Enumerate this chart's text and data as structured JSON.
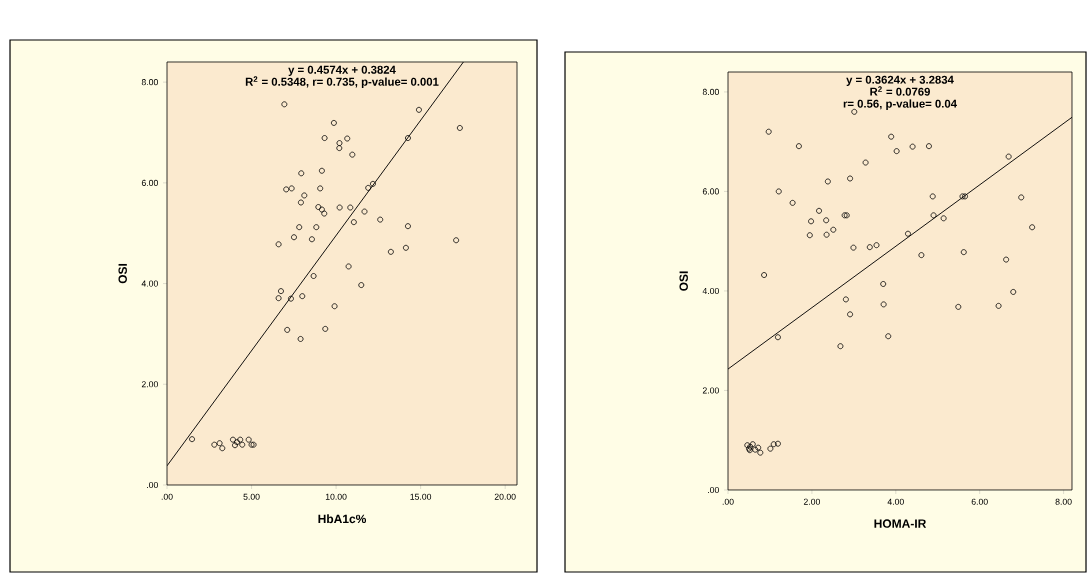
{
  "chart_data": [
    {
      "type": "scatter",
      "xlabel": "HbA1c%",
      "ylabel": "OSI",
      "xlim": [
        0,
        20.7
      ],
      "ylim": [
        0,
        8.4
      ],
      "xticks": [
        {
          "value": 0,
          "label": ".00"
        },
        {
          "value": 5,
          "label": "5.00"
        },
        {
          "value": 10,
          "label": "10.00"
        },
        {
          "value": 15,
          "label": "15.00"
        },
        {
          "value": 20,
          "label": "20.00"
        }
      ],
      "yticks": [
        {
          "value": 0,
          "label": ".00"
        },
        {
          "value": 2,
          "label": "2.00"
        },
        {
          "value": 4,
          "label": "4.00"
        },
        {
          "value": 6,
          "label": "6.00"
        },
        {
          "value": 8,
          "label": "8.00"
        }
      ],
      "annotations": [
        "y = 0.4574x + 0.3824",
        "R$^{2}$ = 0.5348, r= 0.735, p-value= 0.001"
      ],
      "series": [
        {
          "marker": "circle",
          "color": "#000000",
          "x": [
            6.94,
            9.87,
            9.32,
            10.2,
            10.19,
            10.66,
            10.96,
            14.9,
            14.25,
            17.32,
            7.94,
            9.16,
            7.05,
            7.37,
            8.12,
            7.92,
            9.06,
            8.95,
            9.16,
            9.3,
            10.21,
            10.84,
            11.9,
            12.18,
            11.68,
            11.05,
            12.61,
            14.25,
            7.82,
            8.83,
            7.51,
            8.57,
            6.6,
            13.24,
            14.13,
            17.1,
            10.74,
            8.67,
            11.49,
            6.74,
            6.6,
            7.33,
            8.0,
            9.91,
            7.11,
            9.36,
            7.9,
            1.48,
            2.8,
            3.11,
            3.27,
            3.9,
            4.02,
            4.14,
            4.33,
            4.45,
            4.83,
            5.0,
            5.12
          ],
          "values": [
            7.56,
            7.19,
            6.89,
            6.79,
            6.69,
            6.88,
            6.56,
            7.45,
            6.89,
            7.09,
            6.19,
            6.24,
            5.87,
            5.89,
            5.75,
            5.61,
            5.89,
            5.52,
            5.47,
            5.39,
            5.51,
            5.51,
            5.9,
            5.98,
            5.43,
            5.22,
            5.27,
            5.14,
            5.12,
            5.12,
            4.92,
            4.88,
            4.78,
            4.63,
            4.71,
            4.86,
            4.34,
            4.15,
            3.97,
            3.85,
            3.71,
            3.7,
            3.75,
            3.55,
            3.08,
            3.1,
            2.9,
            0.91,
            0.8,
            0.83,
            0.73,
            0.9,
            0.79,
            0.85,
            0.9,
            0.8,
            0.9,
            0.8,
            0.8
          ]
        },
        {
          "type": "line",
          "color": "#000000",
          "x": [
            0,
            17.53
          ],
          "values": [
            0.38,
            8.4
          ]
        }
      ]
    },
    {
      "type": "scatter",
      "xlabel": "HOMA-IR",
      "ylabel": "OSI",
      "xlim": [
        0,
        8.2
      ],
      "ylim": [
        0,
        8.4
      ],
      "xticks": [
        {
          "value": 0,
          "label": ".00"
        },
        {
          "value": 2,
          "label": "2.00"
        },
        {
          "value": 4,
          "label": "4.00"
        },
        {
          "value": 6,
          "label": "6.00"
        },
        {
          "value": 8,
          "label": "8.00"
        }
      ],
      "yticks": [
        {
          "value": 0,
          "label": ".00"
        },
        {
          "value": 2,
          "label": "2.00"
        },
        {
          "value": 4,
          "label": "4.00"
        },
        {
          "value": 6,
          "label": "6.00"
        },
        {
          "value": 8,
          "label": "8.00"
        }
      ],
      "annotations": [
        "y = 0.3624x + 3.2834",
        "R$^{2}$ = 0.0769",
        "r= 0.56, p-value= 0.04"
      ],
      "series": [
        {
          "marker": "circle",
          "color": "#000000",
          "x": [
            3.01,
            0.97,
            3.89,
            1.69,
            4.02,
            4.4,
            4.79,
            3.28,
            6.69,
            2.38,
            2.91,
            1.21,
            1.54,
            2.17,
            1.98,
            2.34,
            2.78,
            2.83,
            4.88,
            5.59,
            5.65,
            6.99,
            4.9,
            5.14,
            1.95,
            2.35,
            2.51,
            4.29,
            7.25,
            2.99,
            3.38,
            3.54,
            4.61,
            5.62,
            6.63,
            0.86,
            3.7,
            6.8,
            2.81,
            2.91,
            3.71,
            5.49,
            6.45,
            1.19,
            2.68,
            3.82,
            0.46,
            0.5,
            0.53,
            0.59,
            0.52,
            0.65,
            0.72,
            0.77,
            1.01,
            1.09,
            1.19
          ],
          "values": [
            7.6,
            7.2,
            7.1,
            6.91,
            6.81,
            6.9,
            6.91,
            6.58,
            6.7,
            6.2,
            6.26,
            6.0,
            5.77,
            5.61,
            5.4,
            5.42,
            5.52,
            5.52,
            5.9,
            5.9,
            5.9,
            5.88,
            5.52,
            5.46,
            5.12,
            5.13,
            5.23,
            5.15,
            5.28,
            4.87,
            4.88,
            4.92,
            4.72,
            4.78,
            4.63,
            4.32,
            4.14,
            3.98,
            3.83,
            3.53,
            3.73,
            3.68,
            3.7,
            3.07,
            2.89,
            3.09,
            0.9,
            0.83,
            0.87,
            0.92,
            0.8,
            0.81,
            0.85,
            0.75,
            0.83,
            0.92,
            0.93
          ]
        },
        {
          "type": "line",
          "color": "#000000",
          "x": [
            0,
            8.2
          ],
          "values": [
            2.43,
            7.49
          ]
        }
      ]
    }
  ]
}
